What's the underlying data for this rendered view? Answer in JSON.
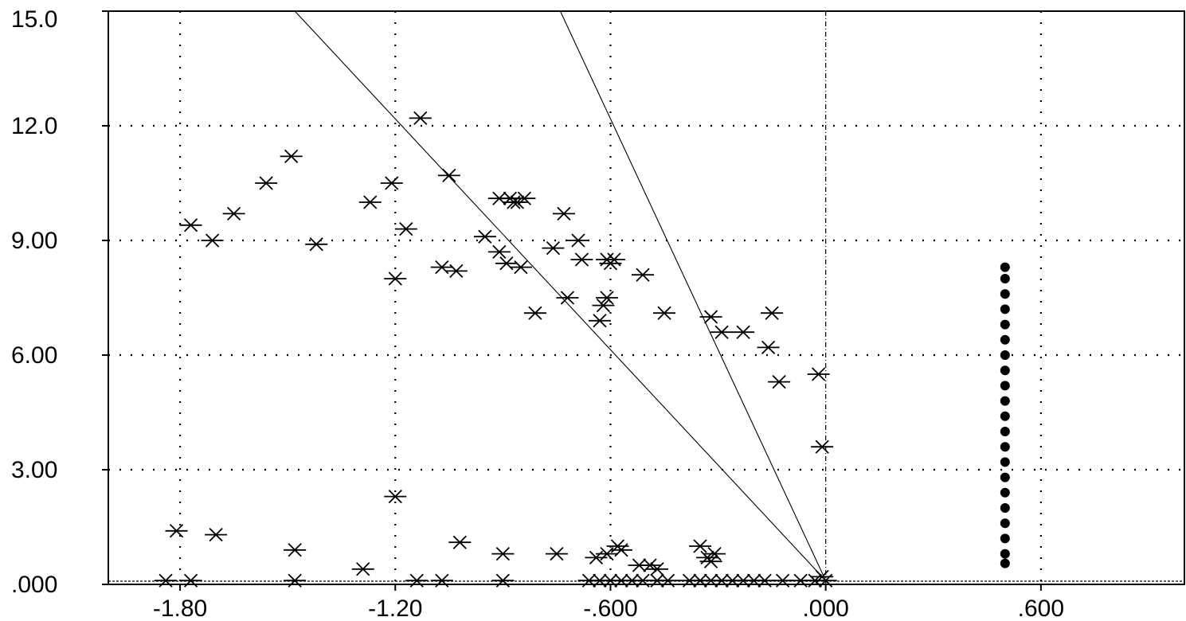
{
  "chart_data": {
    "type": "scatter",
    "title": "",
    "xlabel": "",
    "ylabel": "",
    "xlim": [
      -2.0,
      1.0
    ],
    "ylim": [
      0,
      15
    ],
    "x_ticks": [
      -1.8,
      -1.2,
      -0.6,
      0.0,
      0.6
    ],
    "x_tick_labels": [
      "-1.80",
      "-1.20",
      "-.600",
      ".000",
      ".600"
    ],
    "y_ticks": [
      0,
      3,
      6,
      9,
      12,
      15
    ],
    "y_tick_labels": [
      ".000",
      "3.00",
      "6.00",
      "9.00",
      "12.0",
      "15.0"
    ],
    "grid": true,
    "lines": [
      {
        "x": [
          -1.48,
          0.0
        ],
        "y": [
          15.0,
          0.1
        ]
      },
      {
        "x": [
          -0.74,
          0.0
        ],
        "y": [
          15.0,
          0.1
        ]
      }
    ],
    "series": [
      {
        "marker": "asterisk",
        "points": [
          [
            -1.13,
            12.2
          ],
          [
            -1.49,
            11.2
          ],
          [
            -1.56,
            10.5
          ],
          [
            -1.65,
            9.7
          ],
          [
            -1.77,
            9.4
          ],
          [
            -1.71,
            9.0
          ],
          [
            -1.42,
            8.9
          ],
          [
            -1.27,
            10.0
          ],
          [
            -1.21,
            10.5
          ],
          [
            -1.17,
            9.3
          ],
          [
            -1.2,
            8.0
          ],
          [
            -1.07,
            8.3
          ],
          [
            -1.03,
            8.2
          ],
          [
            -1.05,
            10.7
          ],
          [
            -0.91,
            10.1
          ],
          [
            -0.88,
            10.1
          ],
          [
            -0.86,
            10.0
          ],
          [
            -0.84,
            10.1
          ],
          [
            -0.87,
            10.0
          ],
          [
            -0.95,
            9.1
          ],
          [
            -0.91,
            8.7
          ],
          [
            -0.89,
            8.4
          ],
          [
            -0.85,
            8.3
          ],
          [
            -0.73,
            9.7
          ],
          [
            -0.69,
            9.0
          ],
          [
            -0.76,
            8.8
          ],
          [
            -0.68,
            8.5
          ],
          [
            -0.61,
            8.5
          ],
          [
            -0.59,
            8.5
          ],
          [
            -0.6,
            8.4
          ],
          [
            -0.51,
            8.1
          ],
          [
            -0.72,
            7.5
          ],
          [
            -0.81,
            7.1
          ],
          [
            -0.61,
            7.5
          ],
          [
            -0.62,
            7.3
          ],
          [
            -0.63,
            6.9
          ],
          [
            -0.45,
            7.1
          ],
          [
            -0.32,
            7.0
          ],
          [
            -0.29,
            6.6
          ],
          [
            -0.23,
            6.6
          ],
          [
            -0.15,
            7.1
          ],
          [
            -0.16,
            6.2
          ],
          [
            -0.13,
            5.3
          ],
          [
            -0.02,
            5.5
          ],
          [
            -0.01,
            3.6
          ],
          [
            -1.2,
            2.3
          ],
          [
            -1.81,
            1.4
          ],
          [
            -1.7,
            1.3
          ],
          [
            -1.48,
            0.9
          ],
          [
            -1.02,
            1.1
          ],
          [
            -0.9,
            0.8
          ],
          [
            -0.75,
            0.8
          ],
          [
            -0.64,
            0.7
          ],
          [
            -0.61,
            0.8
          ],
          [
            -0.58,
            1.0
          ],
          [
            -0.57,
            0.9
          ],
          [
            -0.52,
            0.5
          ],
          [
            -0.49,
            0.5
          ],
          [
            -0.47,
            0.4
          ],
          [
            -0.35,
            1.0
          ],
          [
            -0.33,
            0.7
          ],
          [
            -0.31,
            0.8
          ],
          [
            -0.32,
            0.6
          ],
          [
            -1.29,
            0.4
          ],
          [
            -1.84,
            0.1
          ],
          [
            -1.77,
            0.1
          ],
          [
            -1.48,
            0.1
          ],
          [
            -1.14,
            0.1
          ],
          [
            -1.07,
            0.1
          ],
          [
            -0.9,
            0.1
          ],
          [
            -0.66,
            0.1
          ],
          [
            -0.63,
            0.1
          ],
          [
            -0.6,
            0.1
          ],
          [
            -0.57,
            0.1
          ],
          [
            -0.54,
            0.1
          ],
          [
            -0.51,
            0.1
          ],
          [
            -0.47,
            0.1
          ],
          [
            -0.44,
            0.1
          ],
          [
            -0.38,
            0.1
          ],
          [
            -0.35,
            0.1
          ],
          [
            -0.32,
            0.1
          ],
          [
            -0.29,
            0.1
          ],
          [
            -0.26,
            0.1
          ],
          [
            -0.23,
            0.1
          ],
          [
            -0.2,
            0.1
          ],
          [
            -0.17,
            0.1
          ],
          [
            -0.12,
            0.1
          ],
          [
            -0.07,
            0.1
          ],
          [
            -0.03,
            0.1
          ],
          [
            -0.01,
            0.2
          ],
          [
            0.0,
            0.1
          ]
        ]
      },
      {
        "marker": "dot",
        "points": [
          [
            0.5,
            8.3
          ],
          [
            0.5,
            8.0
          ],
          [
            0.5,
            7.6
          ],
          [
            0.5,
            7.2
          ],
          [
            0.5,
            6.8
          ],
          [
            0.5,
            6.4
          ],
          [
            0.5,
            6.0
          ],
          [
            0.5,
            5.6
          ],
          [
            0.5,
            5.2
          ],
          [
            0.5,
            4.8
          ],
          [
            0.5,
            4.4
          ],
          [
            0.5,
            4.0
          ],
          [
            0.5,
            3.6
          ],
          [
            0.5,
            3.2
          ],
          [
            0.5,
            2.8
          ],
          [
            0.5,
            2.4
          ],
          [
            0.5,
            2.0
          ],
          [
            0.5,
            1.6
          ],
          [
            0.5,
            1.2
          ],
          [
            0.5,
            0.8
          ],
          [
            0.5,
            0.55
          ]
        ]
      }
    ]
  }
}
